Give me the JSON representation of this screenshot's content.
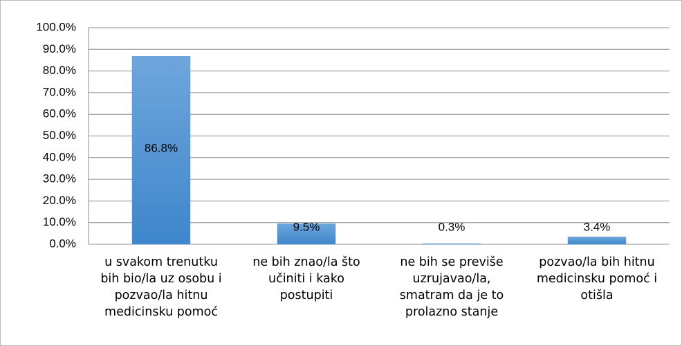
{
  "chart_data": {
    "type": "bar",
    "categories": [
      "u svakom trenutku bih bio/la uz osobu i pozvao/la hitnu medicinsku pomoć",
      "ne bih znao/la što učiniti i kako postupiti",
      "ne bih se previše uzrujavao/la, smatram da je to prolazno stanje",
      "pozvao/la bih hitnu medicinsku pomoć i otišla"
    ],
    "values": [
      86.8,
      9.5,
      0.3,
      3.4
    ],
    "value_labels": [
      "86.8%",
      "9.5%",
      "0.3%",
      "3.4%"
    ],
    "color": "#5b9bd5",
    "ylim": [
      0,
      100
    ],
    "yticks": [
      {
        "value": 0,
        "label": "0.0%"
      },
      {
        "value": 10,
        "label": "10.0%"
      },
      {
        "value": 20,
        "label": "20.0%"
      },
      {
        "value": 30,
        "label": "30.0%"
      },
      {
        "value": 40,
        "label": "40.0%"
      },
      {
        "value": 50,
        "label": "50.0%"
      },
      {
        "value": 60,
        "label": "60.0%"
      },
      {
        "value": 70,
        "label": "70.0%"
      },
      {
        "value": 80,
        "label": "80.0%"
      },
      {
        "value": 90,
        "label": "90.0%"
      },
      {
        "value": 100,
        "label": "100.0%"
      }
    ],
    "grid": true
  }
}
